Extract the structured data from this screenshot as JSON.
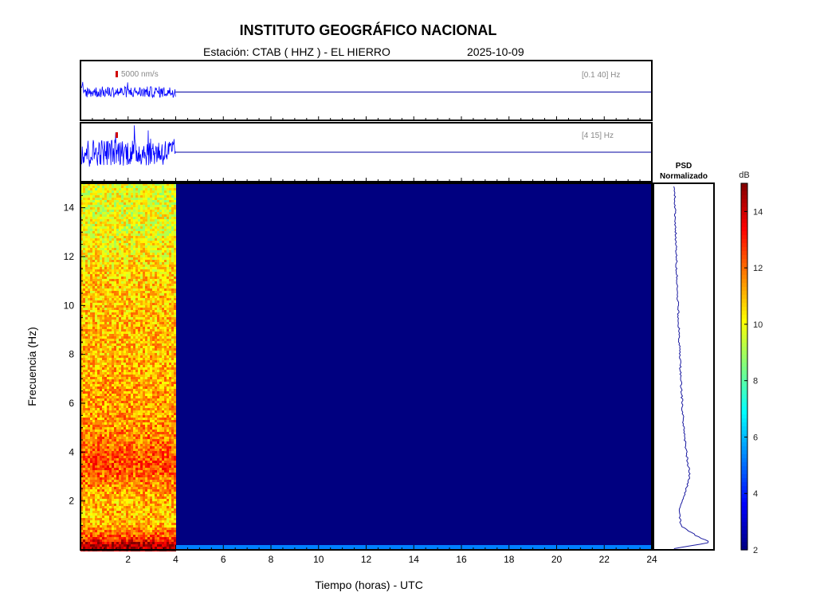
{
  "header": {
    "title": "INSTITUTO GEOGRÁFICO NACIONAL",
    "station_line": "Estación:  CTAB ( HHZ ) - EL HIERRO",
    "date": "2025-10-09"
  },
  "traces": [
    {
      "band_label": "[0.1 40] Hz",
      "scale_label": "5000 nm/s",
      "data_end_hour": 4
    },
    {
      "band_label": "[4 15] Hz",
      "scale_label": "",
      "data_end_hour": 4
    }
  ],
  "psd": {
    "title_line1": "PSD",
    "title_line2": "Normalizado"
  },
  "colorbar": {
    "unit": "dB",
    "min": 2,
    "max": 15,
    "ticks": [
      2,
      4,
      6,
      8,
      10,
      12,
      14
    ],
    "colormap": "jet"
  },
  "chart_data": {
    "type": "heatmap",
    "xlabel": "Tiempo (horas) - UTC",
    "ylabel": "Frecuencia  (Hz)",
    "xlim": [
      0,
      24
    ],
    "ylim": [
      0,
      15
    ],
    "x_ticks": [
      2,
      4,
      6,
      8,
      10,
      12,
      14,
      16,
      18,
      20,
      22,
      24
    ],
    "y_ticks": [
      2,
      4,
      6,
      8,
      10,
      12,
      14
    ],
    "data_end_hour": 4,
    "background_value_db": 2,
    "frequency_profile_db": [
      {
        "f": 0.2,
        "db": 14.5
      },
      {
        "f": 0.5,
        "db": 12.5
      },
      {
        "f": 1.0,
        "db": 11.0
      },
      {
        "f": 2.0,
        "db": 11.0
      },
      {
        "f": 3.5,
        "db": 12.5
      },
      {
        "f": 5.0,
        "db": 11.5
      },
      {
        "f": 8.0,
        "db": 11.0
      },
      {
        "f": 11.0,
        "db": 10.8
      },
      {
        "f": 13.0,
        "db": 10.0
      },
      {
        "f": 15.0,
        "db": 9.8
      }
    ],
    "psd_profile": [
      {
        "f": 0.05,
        "v": 0.02
      },
      {
        "f": 0.3,
        "v": 1.0
      },
      {
        "f": 0.6,
        "v": 0.6
      },
      {
        "f": 1.0,
        "v": 0.2
      },
      {
        "f": 1.6,
        "v": 0.15
      },
      {
        "f": 2.2,
        "v": 0.3
      },
      {
        "f": 3.0,
        "v": 0.45
      },
      {
        "f": 3.7,
        "v": 0.38
      },
      {
        "f": 5.0,
        "v": 0.28
      },
      {
        "f": 7.0,
        "v": 0.2
      },
      {
        "f": 9.0,
        "v": 0.15
      },
      {
        "f": 11.0,
        "v": 0.1
      },
      {
        "f": 13.0,
        "v": 0.06
      },
      {
        "f": 15.0,
        "v": 0.03
      }
    ]
  }
}
